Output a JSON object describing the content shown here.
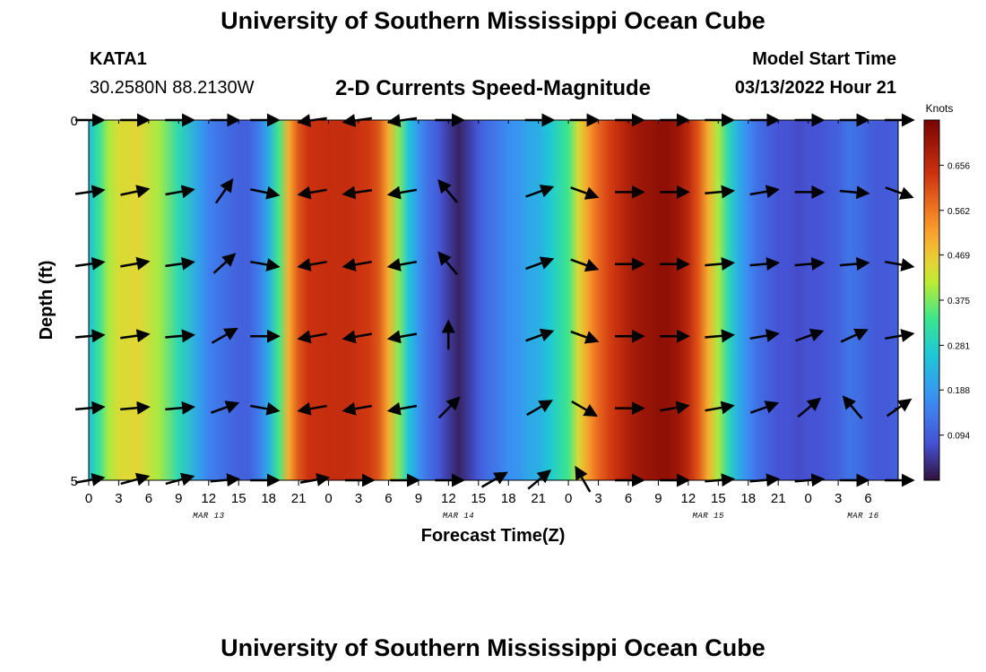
{
  "page": {
    "title_top": "University of Southern Mississippi Ocean Cube",
    "title_bottom": "University of Southern Mississippi Ocean Cube",
    "station_name": "KATA1",
    "station_coords": "30.2580N  88.2130W",
    "model_start_label": "Model Start Time",
    "model_start_value": "03/13/2022 Hour 21"
  },
  "chart_data": {
    "type": "heatmap",
    "title": "2-D Currents Speed-Magnitude",
    "xlabel": "Forecast Time(Z)",
    "ylabel": "Depth (ft)",
    "colorbar_label": "Knots",
    "colorbar_ticks": [
      "0.656",
      "0.562",
      "0.469",
      "0.375",
      "0.281",
      "0.188",
      "0.094"
    ],
    "colorbar_tick_values": [
      0.656,
      0.562,
      0.469,
      0.375,
      0.281,
      0.188,
      0.094
    ],
    "colorbar_range": [
      0.0,
      0.75
    ],
    "x_range_hours": [
      0,
      81
    ],
    "y_range_ft": [
      0,
      5
    ],
    "y_ticks": [
      "0",
      "5"
    ],
    "y_tick_values": [
      0,
      5
    ],
    "x_tick_labels": [
      "0",
      "3",
      "6",
      "9",
      "12",
      "15",
      "18",
      "21",
      "0",
      "3",
      "6",
      "9",
      "12",
      "15",
      "18",
      "21",
      "0",
      "3",
      "6",
      "9",
      "12",
      "15",
      "18",
      "21",
      "0",
      "3",
      "6"
    ],
    "date_labels": [
      {
        "text": "MAR 13",
        "hour": 12
      },
      {
        "text": "MAR 14",
        "hour": 37
      },
      {
        "text": "MAR 15",
        "hour": 62
      },
      {
        "text": "MAR 16",
        "hour": 77.5
      }
    ],
    "speed_profile_hours": [
      0,
      1,
      2,
      3,
      5,
      7,
      9,
      11,
      12,
      13,
      15,
      16,
      17,
      18,
      19,
      20,
      21,
      22,
      24,
      26,
      28,
      29,
      30,
      31,
      32,
      33,
      34,
      35,
      36,
      37,
      38,
      39,
      40,
      41,
      42,
      43,
      44,
      45,
      46,
      47,
      48,
      49,
      50,
      51,
      52,
      53,
      54,
      55,
      56,
      57,
      58,
      59,
      60,
      61,
      62,
      63,
      64,
      65,
      66,
      67,
      68,
      69,
      70,
      71,
      72,
      73,
      74,
      75,
      76,
      77,
      78,
      79,
      80,
      81
    ],
    "speed_profile_knots": [
      0.25,
      0.32,
      0.4,
      0.44,
      0.45,
      0.4,
      0.3,
      0.2,
      0.15,
      0.13,
      0.1,
      0.1,
      0.14,
      0.22,
      0.34,
      0.5,
      0.6,
      0.64,
      0.65,
      0.65,
      0.63,
      0.6,
      0.5,
      0.38,
      0.26,
      0.18,
      0.12,
      0.09,
      0.05,
      0.02,
      0.05,
      0.09,
      0.12,
      0.14,
      0.17,
      0.18,
      0.21,
      0.22,
      0.26,
      0.3,
      0.34,
      0.44,
      0.52,
      0.58,
      0.62,
      0.65,
      0.68,
      0.7,
      0.71,
      0.72,
      0.72,
      0.7,
      0.66,
      0.6,
      0.5,
      0.4,
      0.3,
      0.22,
      0.16,
      0.12,
      0.1,
      0.08,
      0.08,
      0.07,
      0.08,
      0.08,
      0.09,
      0.1,
      0.13,
      0.12,
      0.1,
      0.09,
      0.09,
      0.1
    ],
    "depth_rows_ft": [
      0,
      1,
      2,
      3,
      4,
      5
    ],
    "vector_hours": [
      0,
      4.5,
      9,
      13.5,
      17.5,
      22.5,
      27,
      31.5,
      36,
      40.5,
      45,
      49.5,
      54,
      58.5,
      63,
      67.5,
      72,
      76.5,
      81
    ],
    "vector_dirs_deg": [
      [
        0,
        0,
        0,
        0,
        0,
        188,
        188,
        188,
        0,
        null,
        0,
        0,
        0,
        0,
        0,
        0,
        0,
        0,
        0
      ],
      [
        8,
        12,
        10,
        55,
        -12,
        190,
        188,
        190,
        130,
        null,
        20,
        -20,
        0,
        0,
        5,
        10,
        0,
        -5,
        -20
      ],
      [
        8,
        10,
        8,
        42,
        -10,
        190,
        190,
        190,
        130,
        null,
        20,
        -20,
        0,
        0,
        5,
        5,
        5,
        5,
        -10
      ],
      [
        5,
        8,
        5,
        30,
        0,
        190,
        190,
        190,
        90,
        null,
        20,
        -20,
        0,
        0,
        5,
        10,
        20,
        25,
        10
      ],
      [
        5,
        5,
        5,
        20,
        -10,
        190,
        190,
        190,
        45,
        null,
        30,
        -30,
        0,
        10,
        10,
        20,
        40,
        130,
        35
      ],
      [
        10,
        15,
        15,
        5,
        0,
        10,
        0,
        0,
        0,
        30,
        40,
        120,
        0,
        0,
        5,
        5,
        5,
        0,
        0
      ]
    ]
  }
}
